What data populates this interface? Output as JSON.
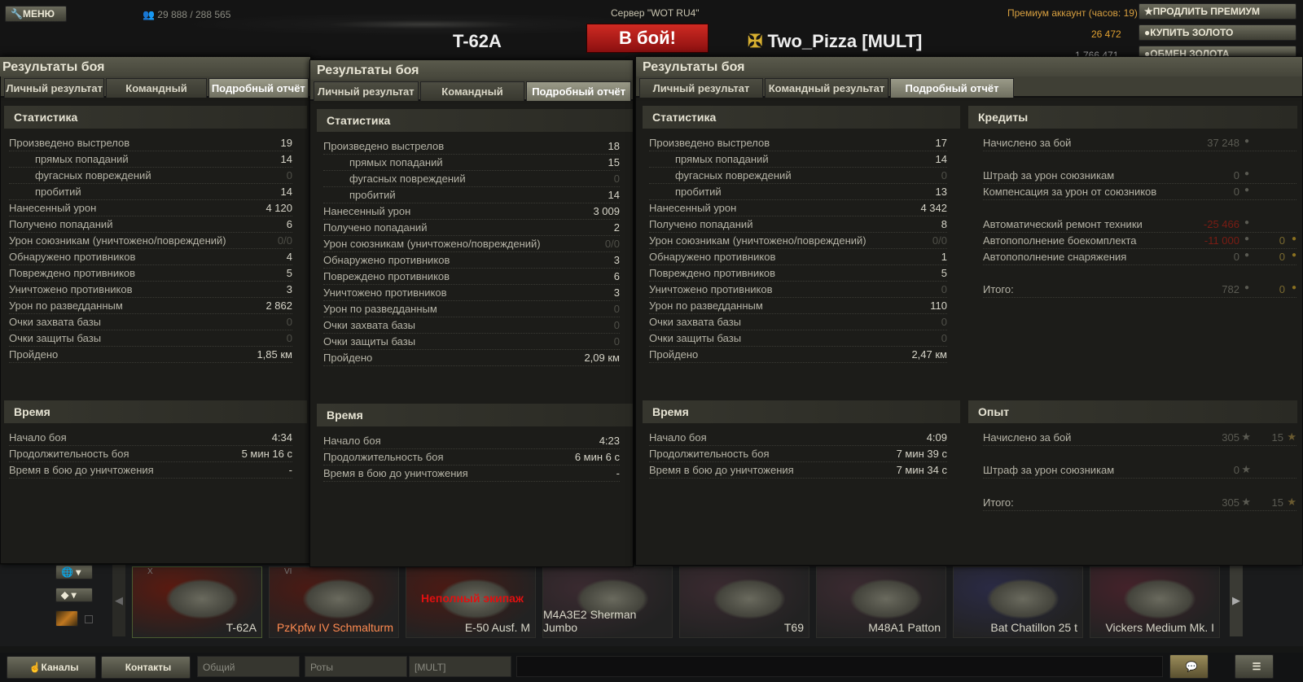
{
  "header": {
    "menu": "МЕНЮ",
    "online": "29 888 / 288 565",
    "server": "Сервер \"WOT RU4\"",
    "tank": "T-62A",
    "battle_button": "В бой!",
    "player": "Two_Pizza [MULT]",
    "premium": "Премиум аккаунт (часов:  19)",
    "gold": "26 472",
    "credits": "1 766 471",
    "extend_premium": "ПРОДЛИТЬ ПРЕМИУМ",
    "buy_gold": "КУПИТЬ ЗОЛОТО",
    "exchange_gold": "ОБМЕН ЗОЛОТА"
  },
  "labels": {
    "window_title": "Результаты боя",
    "tabs": [
      "Личный результат",
      "Командный результат",
      "Подробный отчёт"
    ],
    "stats": "Статистика",
    "time": "Время",
    "credits": "Кредиты",
    "exp": "Опыт",
    "stat_rows": [
      "Произведено выстрелов",
      "прямых попаданий",
      "фугасных повреждений",
      "пробитий",
      "Нанесенный урон",
      "Получено попаданий",
      "Урон союзникам (уничтожено/повреждений)",
      "Обнаружено противников",
      "Повреждено противников",
      "Уничтожено противников",
      "Урон по разведданным",
      "Очки захвата базы",
      "Очки защиты базы",
      "Пройдено"
    ],
    "time_rows": [
      "Начало боя",
      "Продолжительность боя",
      "Время в бою до уничтожения"
    ]
  },
  "windows": [
    {
      "stats": [
        "19",
        "14",
        "0",
        "14",
        "4 120",
        "6",
        "0/0",
        "4",
        "5",
        "3",
        "2 862",
        "0",
        "0",
        "1,85 км"
      ],
      "time": [
        "4:34",
        "5 мин 16 с",
        "-"
      ]
    },
    {
      "stats": [
        "18",
        "15",
        "0",
        "14",
        "3 009",
        "2",
        "0/0",
        "3",
        "6",
        "3",
        "0",
        "0",
        "0",
        "2,09 км"
      ],
      "time": [
        "4:23",
        "6 мин 6 с",
        "-"
      ]
    },
    {
      "stats": [
        "17",
        "14",
        "0",
        "13",
        "4 342",
        "8",
        "0/0",
        "1",
        "5",
        "0",
        "110",
        "0",
        "0",
        "2,47 км"
      ],
      "time": [
        "4:09",
        "7 мин 39 с",
        "7 мин 34 с"
      ]
    }
  ],
  "credits_rows": [
    {
      "label": "Начислено за бой",
      "value": "37 248",
      "gold": null,
      "gap": false
    },
    {
      "label": "Штраф за урон союзникам",
      "value": "0",
      "gold": null,
      "gap": true
    },
    {
      "label": "Компенсация за урон от союзников",
      "value": "0",
      "gold": null,
      "gap": false
    },
    {
      "label": "Автоматический ремонт техники",
      "value": "-25 466",
      "gold": null,
      "gap": true,
      "negative": true
    },
    {
      "label": "Автопополнение боекомплекта",
      "value": "-11 000",
      "gold": "0",
      "gap": false,
      "negative": true
    },
    {
      "label": "Автопополнение снаряжения",
      "value": "0",
      "gold": "0",
      "gap": false
    },
    {
      "label": "Итого:",
      "value": "782",
      "gold": "0",
      "gap": true
    }
  ],
  "exp_rows": [
    {
      "label": "Начислено за бой",
      "value": "305",
      "free": "15"
    },
    {
      "label": "Штраф за урон союзникам",
      "value": "0",
      "free": null
    },
    {
      "label": "Итого:",
      "value": "305",
      "free": "15"
    }
  ],
  "carousel": {
    "tanks": [
      {
        "name": "T-62A",
        "nation": "ussr",
        "tier": "X"
      },
      {
        "name": "PzKpfw IV Schmalturm",
        "nation": "germany",
        "tier": "VI"
      },
      {
        "name": "E-50 Ausf. M",
        "nation": "germany",
        "warning": "Неполный экипаж"
      },
      {
        "name": "M4A3E2 Sherman Jumbo",
        "nation": "usa"
      },
      {
        "name": "T69",
        "nation": "usa"
      },
      {
        "name": "M48A1 Patton",
        "nation": "usa"
      },
      {
        "name": "Bat Chatillon 25 t",
        "nation": "france"
      },
      {
        "name": "Vickers Medium Mk. I",
        "nation": "uk"
      }
    ]
  },
  "chat": {
    "channels": "Каналы",
    "contacts": "Контакты",
    "tabs": [
      "Общий",
      "Роты",
      "[MULT]"
    ]
  },
  "colors": {
    "negative": "#7a1c14",
    "gold": "#e0a030",
    "battle": "#b0181a"
  }
}
